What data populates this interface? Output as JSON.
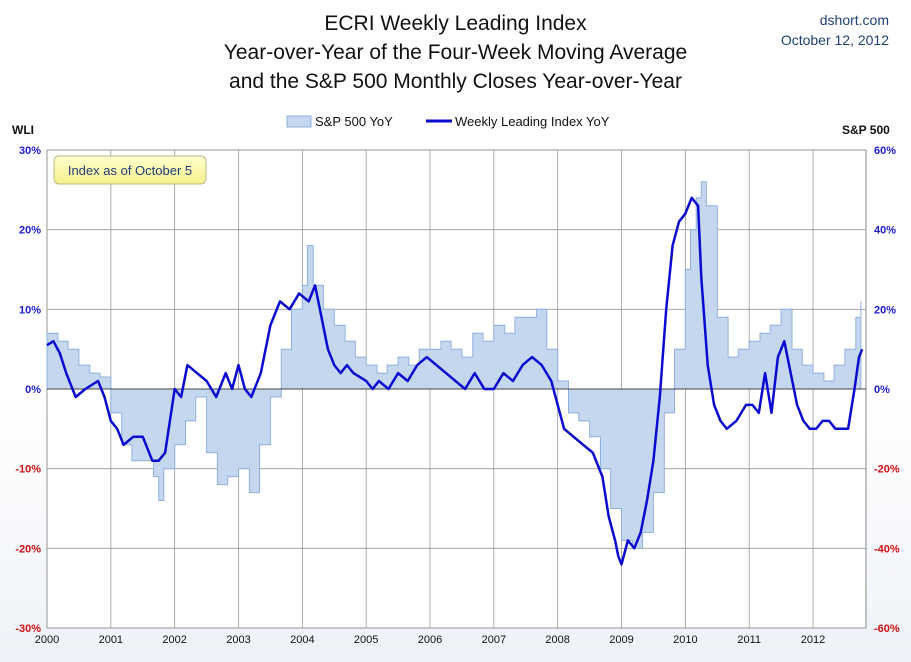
{
  "title_lines": [
    "ECRI Weekly Leading Index",
    "Year-over-Year of the Four-Week Moving Average",
    "and the S&P 500 Monthly Closes Year-over-Year"
  ],
  "source": "dshort.com",
  "date": "October 12, 2012",
  "annotation": "Index as of October 5",
  "colors": {
    "sp_fill": "#c5d7ef",
    "sp_edge": "#8fb0dc",
    "wli_line": "#0a0ad0",
    "pos_tick": "#1a1ad0",
    "neg_tick": "#d01010",
    "grid": "#999999"
  },
  "chart_data": {
    "type": "area",
    "left_axis_label": "WLI",
    "right_axis_label": "S&P 500",
    "left_ylim": [
      -30,
      30
    ],
    "right_ylim": [
      -60,
      60
    ],
    "left_ticks": [
      "30%",
      "20%",
      "10%",
      "0%",
      "-10%",
      "-20%",
      "-30%"
    ],
    "right_ticks": [
      "60%",
      "40%",
      "20%",
      "0%",
      "-20%",
      "-40%",
      "-60%"
    ],
    "xlim": [
      2000,
      2012.83
    ],
    "x_ticks": [
      "2000",
      "2001",
      "2002",
      "2003",
      "2004",
      "2005",
      "2006",
      "2007",
      "2008",
      "2009",
      "2010",
      "2011",
      "2012"
    ],
    "grid": true,
    "legend": "top-center",
    "series": [
      {
        "name": "S&P 500 YoY",
        "kind": "area",
        "axis": "right",
        "x": [
          2000.0,
          2000.17,
          2000.33,
          2000.5,
          2000.67,
          2000.83,
          2001.0,
          2001.17,
          2001.33,
          2001.5,
          2001.67,
          2001.75,
          2001.83,
          2002.0,
          2002.17,
          2002.33,
          2002.5,
          2002.67,
          2002.83,
          2003.0,
          2003.17,
          2003.33,
          2003.5,
          2003.67,
          2003.83,
          2004.0,
          2004.08,
          2004.17,
          2004.33,
          2004.5,
          2004.67,
          2004.83,
          2005.0,
          2005.17,
          2005.33,
          2005.5,
          2005.67,
          2005.83,
          2006.0,
          2006.17,
          2006.33,
          2006.5,
          2006.67,
          2006.83,
          2007.0,
          2007.17,
          2007.33,
          2007.5,
          2007.67,
          2007.83,
          2008.0,
          2008.17,
          2008.33,
          2008.5,
          2008.67,
          2008.83,
          2009.0,
          2009.17,
          2009.33,
          2009.5,
          2009.67,
          2009.83,
          2010.0,
          2010.08,
          2010.17,
          2010.25,
          2010.33,
          2010.5,
          2010.67,
          2010.83,
          2011.0,
          2011.17,
          2011.33,
          2011.5,
          2011.67,
          2011.83,
          2012.0,
          2012.17,
          2012.33,
          2012.5,
          2012.67,
          2012.75
        ],
        "y": [
          14,
          12,
          10,
          6,
          4,
          3,
          -6,
          -14,
          -18,
          -18,
          -22,
          -28,
          -20,
          -14,
          -8,
          -2,
          -16,
          -24,
          -22,
          -20,
          -26,
          -14,
          -2,
          10,
          20,
          26,
          36,
          26,
          20,
          16,
          12,
          8,
          6,
          4,
          6,
          8,
          6,
          10,
          10,
          12,
          10,
          8,
          14,
          12,
          16,
          14,
          18,
          18,
          20,
          10,
          2,
          -6,
          -8,
          -12,
          -20,
          -30,
          -38,
          -40,
          -36,
          -26,
          -6,
          10,
          30,
          40,
          48,
          52,
          46,
          18,
          8,
          10,
          12,
          14,
          16,
          20,
          10,
          6,
          4,
          2,
          6,
          10,
          18,
          22
        ]
      },
      {
        "name": "Weekly Leading Index YoY",
        "kind": "line",
        "axis": "left",
        "x": [
          2000.0,
          2000.1,
          2000.2,
          2000.3,
          2000.45,
          2000.6,
          2000.8,
          2000.9,
          2001.0,
          2001.1,
          2001.2,
          2001.35,
          2001.5,
          2001.65,
          2001.75,
          2001.85,
          2002.0,
          2002.1,
          2002.2,
          2002.35,
          2002.5,
          2002.65,
          2002.8,
          2002.9,
          2003.0,
          2003.1,
          2003.2,
          2003.35,
          2003.5,
          2003.65,
          2003.8,
          2003.95,
          2004.1,
          2004.2,
          2004.3,
          2004.4,
          2004.5,
          2004.6,
          2004.7,
          2004.8,
          2005.0,
          2005.1,
          2005.2,
          2005.35,
          2005.5,
          2005.65,
          2005.8,
          2005.95,
          2006.1,
          2006.25,
          2006.4,
          2006.55,
          2006.7,
          2006.85,
          2007.0,
          2007.15,
          2007.3,
          2007.45,
          2007.6,
          2007.75,
          2007.9,
          2008.0,
          2008.1,
          2008.25,
          2008.4,
          2008.55,
          2008.7,
          2008.8,
          2008.9,
          2008.95,
          2009.0,
          2009.1,
          2009.2,
          2009.3,
          2009.4,
          2009.5,
          2009.6,
          2009.7,
          2009.8,
          2009.9,
          2010.0,
          2010.1,
          2010.2,
          2010.25,
          2010.35,
          2010.45,
          2010.55,
          2010.65,
          2010.8,
          2010.95,
          2011.05,
          2011.15,
          2011.25,
          2011.35,
          2011.45,
          2011.55,
          2011.65,
          2011.75,
          2011.85,
          2011.95,
          2012.05,
          2012.15,
          2012.25,
          2012.35,
          2012.45,
          2012.55,
          2012.65,
          2012.72,
          2012.77
        ],
        "y": [
          5.5,
          6,
          4.5,
          2,
          -1,
          0,
          1,
          -1,
          -4,
          -5,
          -7,
          -6,
          -6,
          -9,
          -9,
          -8,
          0,
          -1,
          3,
          2,
          1,
          -1,
          2,
          0,
          3,
          0,
          -1,
          2,
          8,
          11,
          10,
          12,
          11,
          13,
          9,
          5,
          3,
          2,
          3,
          2,
          1,
          0,
          1,
          0,
          2,
          1,
          3,
          4,
          3,
          2,
          1,
          0,
          2,
          0,
          0,
          2,
          1,
          3,
          4,
          3,
          1,
          -2,
          -5,
          -6,
          -7,
          -8,
          -11,
          -16,
          -19,
          -21,
          -22,
          -19,
          -20,
          -18,
          -14,
          -9,
          -1,
          10,
          18,
          21,
          22,
          24,
          23,
          14,
          3,
          -2,
          -4,
          -5,
          -4,
          -2,
          -2,
          -3,
          2,
          -3,
          4,
          6,
          2,
          -2,
          -4,
          -5,
          -5,
          -4,
          -4,
          -5,
          -5,
          -5,
          0,
          4,
          5
        ]
      }
    ]
  }
}
